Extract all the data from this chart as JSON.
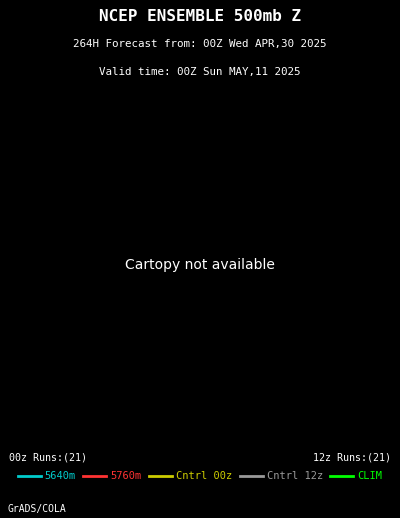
{
  "title_line1": "NCEP ENSEMBLE 500mb Z",
  "title_line2": "264H Forecast from: 00Z Wed APR,30 2025",
  "title_line3": "Valid time: 00Z Sun MAY,11 2025",
  "background_color": "#000000",
  "map_bg": "#000000",
  "border_color": "#ffffff",
  "grid_color": "#aaaaaa",
  "coastline_color": "#ffffff",
  "label_00z": "00z Runs:(21)",
  "label_12z": "12z Runs:(21)",
  "footer": "GrADS/COLA",
  "legend_items": [
    {
      "label": "5640m",
      "color": "#00cccc"
    },
    {
      "label": "5760m",
      "color": "#ff3333"
    },
    {
      "label": "Cntrl 00z",
      "color": "#cccc00"
    },
    {
      "label": "Cntrl 12z",
      "color": "#999999"
    },
    {
      "label": "CLIM",
      "color": "#00ff00"
    }
  ],
  "cyan_color": "#00cccc",
  "red_color": "#ff3333",
  "yellow_color": "#cccc00",
  "gray_color": "#999999",
  "green_color": "#00ff00",
  "title_color": "#ffffff",
  "text_color": "#ffffff",
  "proj_central_lon": -100,
  "proj_central_lat": 50,
  "proj_std_parallel1": 30,
  "proj_std_parallel2": 60
}
